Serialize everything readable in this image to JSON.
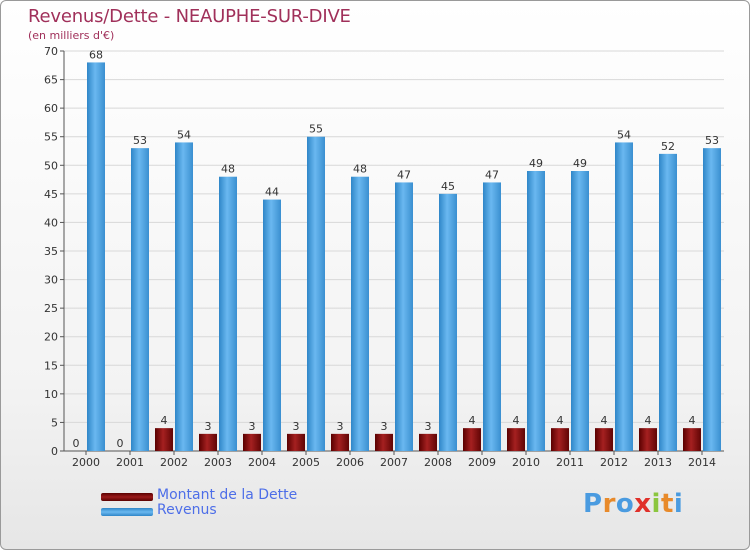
{
  "chart_data": {
    "type": "bar",
    "title": "Revenus/Dette - NEAUPHE-SUR-DIVE",
    "subtitle": "(en milliers d'€)",
    "categories": [
      "2000",
      "2001",
      "2002",
      "2003",
      "2004",
      "2005",
      "2006",
      "2007",
      "2008",
      "2009",
      "2010",
      "2011",
      "2012",
      "2013",
      "2014"
    ],
    "series": [
      {
        "name": "Montant de la Dette",
        "color": "#7a0a0a",
        "values": [
          0,
          0,
          4,
          3,
          3,
          3,
          3,
          3,
          3,
          4,
          4,
          4,
          4,
          4,
          4
        ]
      },
      {
        "name": "Revenus",
        "color": "#4aa6e8",
        "values": [
          68,
          53,
          54,
          48,
          44,
          55,
          48,
          47,
          45,
          47,
          49,
          49,
          54,
          52,
          53
        ]
      }
    ],
    "ylim": [
      0,
      70
    ],
    "yticks": [
      0,
      5,
      10,
      15,
      20,
      25,
      30,
      35,
      40,
      45,
      50,
      55,
      60,
      65,
      70
    ],
    "grid": true,
    "legend_position": "bottom-left"
  },
  "branding": {
    "logo_letters": [
      "P",
      "r",
      "o",
      "x",
      "i",
      "t",
      "i"
    ],
    "logo_colors": [
      "#4a9be0",
      "#e88a2a",
      "#4a9be0",
      "#e0302a",
      "#8bc63f",
      "#e88a2a",
      "#4a9be0"
    ]
  }
}
